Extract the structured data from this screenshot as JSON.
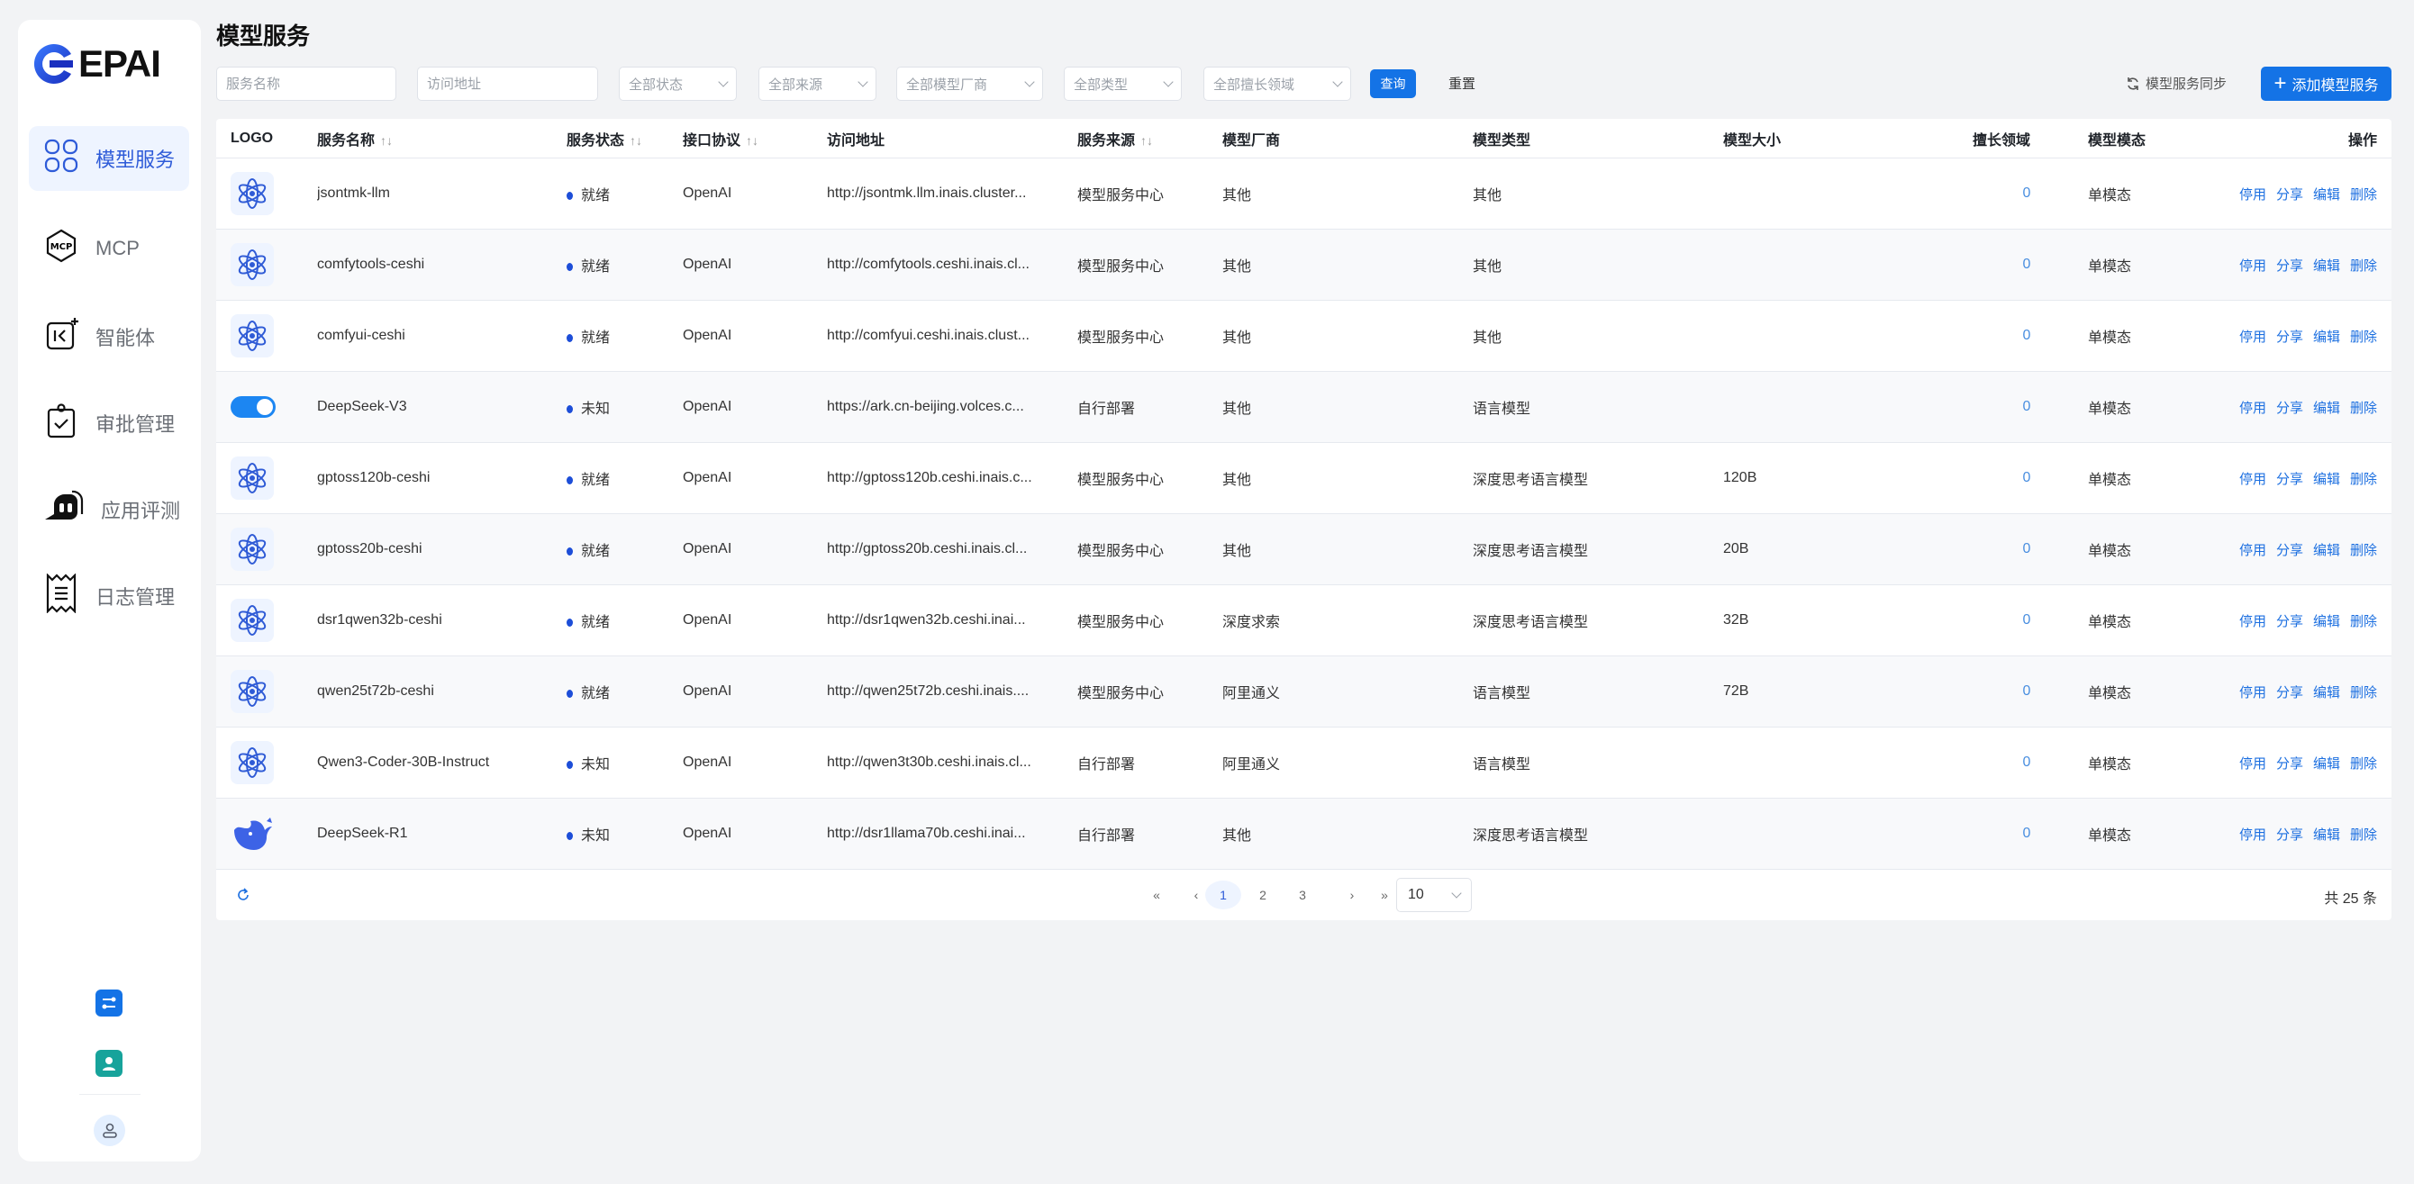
{
  "brand": {
    "logo_text": "EPAI",
    "accent": "#1473e6"
  },
  "sidebar": {
    "items": [
      {
        "label": "模型服务",
        "icon": "grid-icon",
        "active": true
      },
      {
        "label": "MCP",
        "icon": "mcp-icon"
      },
      {
        "label": "智能体",
        "icon": "agent-icon"
      },
      {
        "label": "审批管理",
        "icon": "clipboard-check-icon"
      },
      {
        "label": "应用评测",
        "icon": "chat-bubble-icon"
      },
      {
        "label": "日志管理",
        "icon": "receipt-icon"
      }
    ]
  },
  "page": {
    "title": "模型服务"
  },
  "filters": {
    "name_placeholder": "服务名称",
    "url_placeholder": "访问地址",
    "status": "全部状态",
    "source": "全部来源",
    "vendor": "全部模型厂商",
    "type": "全部类型",
    "domain": "全部擅长领域",
    "query": "查询",
    "reset": "重置",
    "sync": "模型服务同步",
    "add": "添加模型服务"
  },
  "table": {
    "headers": [
      "LOGO",
      "服务名称",
      "服务状态",
      "接口协议",
      "访问地址",
      "服务来源",
      "模型厂商",
      "模型类型",
      "模型大小",
      "擅长领域",
      "模型模态",
      "操作"
    ],
    "actions": [
      "停用",
      "分享",
      "编辑",
      "删除"
    ],
    "rows": [
      {
        "logo": "atom",
        "name": "jsontmk-llm",
        "status": "就绪",
        "protocol": "OpenAI",
        "url": "http://jsontmk.llm.inais.cluster...",
        "source": "模型服务中心",
        "vendor": "其他",
        "type": "其他",
        "size": "",
        "domain": "0",
        "modality": "单模态"
      },
      {
        "logo": "atom",
        "name": "comfytools-ceshi",
        "status": "就绪",
        "protocol": "OpenAI",
        "url": "http://comfytools.ceshi.inais.cl...",
        "source": "模型服务中心",
        "vendor": "其他",
        "type": "其他",
        "size": "",
        "domain": "0",
        "modality": "单模态"
      },
      {
        "logo": "atom",
        "name": "comfyui-ceshi",
        "status": "就绪",
        "protocol": "OpenAI",
        "url": "http://comfyui.ceshi.inais.clust...",
        "source": "模型服务中心",
        "vendor": "其他",
        "type": "其他",
        "size": "",
        "domain": "0",
        "modality": "单模态"
      },
      {
        "logo": "toggle",
        "name": "DeepSeek-V3",
        "status": "未知",
        "protocol": "OpenAI",
        "url": "https://ark.cn-beijing.volces.c...",
        "source": "自行部署",
        "vendor": "其他",
        "type": "语言模型",
        "size": "",
        "domain": "0",
        "modality": "单模态"
      },
      {
        "logo": "atom",
        "name": "gptoss120b-ceshi",
        "status": "就绪",
        "protocol": "OpenAI",
        "url": "http://gptoss120b.ceshi.inais.c...",
        "source": "模型服务中心",
        "vendor": "其他",
        "type": "深度思考语言模型",
        "size": "120B",
        "domain": "0",
        "modality": "单模态"
      },
      {
        "logo": "atom",
        "name": "gptoss20b-ceshi",
        "status": "就绪",
        "protocol": "OpenAI",
        "url": "http://gptoss20b.ceshi.inais.cl...",
        "source": "模型服务中心",
        "vendor": "其他",
        "type": "深度思考语言模型",
        "size": "20B",
        "domain": "0",
        "modality": "单模态"
      },
      {
        "logo": "atom",
        "name": "dsr1qwen32b-ceshi",
        "status": "就绪",
        "protocol": "OpenAI",
        "url": "http://dsr1qwen32b.ceshi.inai...",
        "source": "模型服务中心",
        "vendor": "深度求索",
        "type": "深度思考语言模型",
        "size": "32B",
        "domain": "0",
        "modality": "单模态"
      },
      {
        "logo": "atom",
        "name": "qwen25t72b-ceshi",
        "status": "就绪",
        "protocol": "OpenAI",
        "url": "http://qwen25t72b.ceshi.inais....",
        "source": "模型服务中心",
        "vendor": "阿里通义",
        "type": "语言模型",
        "size": "72B",
        "domain": "0",
        "modality": "单模态"
      },
      {
        "logo": "atom",
        "name": "Qwen3-Coder-30B-Instruct",
        "status": "未知",
        "protocol": "OpenAI",
        "url": "http://qwen3t30b.ceshi.inais.cl...",
        "source": "自行部署",
        "vendor": "阿里通义",
        "type": "语言模型",
        "size": "",
        "domain": "0",
        "modality": "单模态"
      },
      {
        "logo": "whale",
        "name": "DeepSeek-R1",
        "status": "未知",
        "protocol": "OpenAI",
        "url": "http://dsr1llama70b.ceshi.inai...",
        "source": "自行部署",
        "vendor": "其他",
        "type": "深度思考语言模型",
        "size": "",
        "domain": "0",
        "modality": "单模态"
      }
    ]
  },
  "pagination": {
    "pages": [
      "1",
      "2",
      "3"
    ],
    "current": "1",
    "page_size": "10",
    "total": "共 25 条"
  }
}
